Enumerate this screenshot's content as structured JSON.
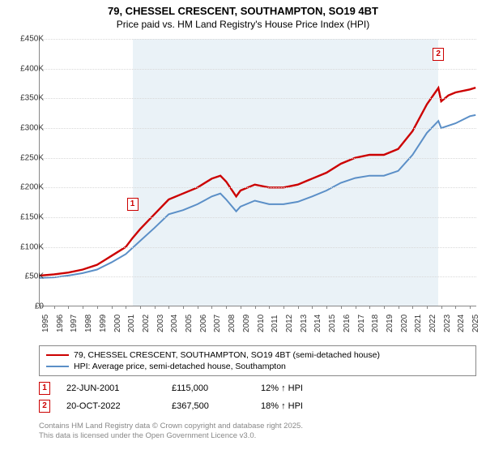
{
  "title": "79, CHESSEL CRESCENT, SOUTHAMPTON, SO19 4BT",
  "subtitle": "Price paid vs. HM Land Registry's House Price Index (HPI)",
  "chart": {
    "type": "line",
    "xlim": [
      1995,
      2025.5
    ],
    "ylim": [
      0,
      450000
    ],
    "ytick_step": 50000,
    "yticks": [
      "£0",
      "£50K",
      "£100K",
      "£150K",
      "£200K",
      "£250K",
      "£300K",
      "£350K",
      "£400K",
      "£450K"
    ],
    "xticks": [
      1995,
      1996,
      1997,
      1998,
      1999,
      2000,
      2001,
      2002,
      2003,
      2004,
      2005,
      2006,
      2007,
      2008,
      2009,
      2010,
      2011,
      2012,
      2013,
      2014,
      2015,
      2016,
      2017,
      2018,
      2019,
      2020,
      2021,
      2022,
      2023,
      2024,
      2025
    ],
    "plot_band": {
      "from": 2001.47,
      "to": 2022.8,
      "color": "#eaf2f7"
    },
    "background_color": "#ffffff",
    "grid_color": "#d8d8d8",
    "series": [
      {
        "name": "price_paid",
        "color": "#cc0000",
        "width": 2.4,
        "label": "79, CHESSEL CRESCENT, SOUTHAMPTON, SO19 4BT (semi-detached house)",
        "x": [
          1995,
          1996,
          1997,
          1998,
          1999,
          2000,
          2001,
          2001.47,
          2002,
          2003,
          2004,
          2005,
          2006,
          2007,
          2007.6,
          2008,
          2008.7,
          2009,
          2010,
          2011,
          2012,
          2013,
          2014,
          2015,
          2016,
          2017,
          2018,
          2019,
          2020,
          2021,
          2022,
          2022.8,
          2023,
          2023.5,
          2024,
          2025,
          2025.4
        ],
        "y": [
          52000,
          54000,
          57000,
          62000,
          70000,
          85000,
          100000,
          115000,
          130000,
          155000,
          180000,
          190000,
          200000,
          215000,
          220000,
          210000,
          185000,
          195000,
          205000,
          200000,
          200000,
          205000,
          215000,
          225000,
          240000,
          250000,
          255000,
          255000,
          265000,
          295000,
          340000,
          367500,
          345000,
          355000,
          360000,
          365000,
          368000
        ]
      },
      {
        "name": "hpi",
        "color": "#5b8fc7",
        "width": 2,
        "label": "HPI: Average price, semi-detached house, Southampton",
        "x": [
          1995,
          1996,
          1997,
          1998,
          1999,
          2000,
          2001,
          2002,
          2003,
          2004,
          2005,
          2006,
          2007,
          2007.6,
          2008,
          2008.7,
          2009,
          2010,
          2011,
          2012,
          2013,
          2014,
          2015,
          2016,
          2017,
          2018,
          2019,
          2020,
          2021,
          2022,
          2022.8,
          2023,
          2024,
          2025,
          2025.4
        ],
        "y": [
          48000,
          49000,
          52000,
          56000,
          62000,
          74000,
          88000,
          110000,
          132000,
          155000,
          162000,
          172000,
          185000,
          190000,
          180000,
          160000,
          168000,
          178000,
          172000,
          172000,
          176000,
          185000,
          195000,
          208000,
          216000,
          220000,
          220000,
          228000,
          255000,
          292000,
          312000,
          300000,
          308000,
          320000,
          322000
        ]
      }
    ],
    "markers": [
      {
        "id": "1",
        "x": 2001.47,
        "y": 115000,
        "offset_y": -50
      },
      {
        "id": "2",
        "x": 2022.8,
        "y": 367500,
        "offset_y": -50
      }
    ]
  },
  "legend": {
    "items": [
      {
        "color": "#cc0000",
        "label": "79, CHESSEL CRESCENT, SOUTHAMPTON, SO19 4BT (semi-detached house)"
      },
      {
        "color": "#5b8fc7",
        "label": "HPI: Average price, semi-detached house, Southampton"
      }
    ]
  },
  "sales": [
    {
      "id": "1",
      "date": "22-JUN-2001",
      "price": "£115,000",
      "diff": "12% ↑ HPI"
    },
    {
      "id": "2",
      "date": "20-OCT-2022",
      "price": "£367,500",
      "diff": "18% ↑ HPI"
    }
  ],
  "footer_line1": "Contains HM Land Registry data © Crown copyright and database right 2025.",
  "footer_line2": "This data is licensed under the Open Government Licence v3.0."
}
